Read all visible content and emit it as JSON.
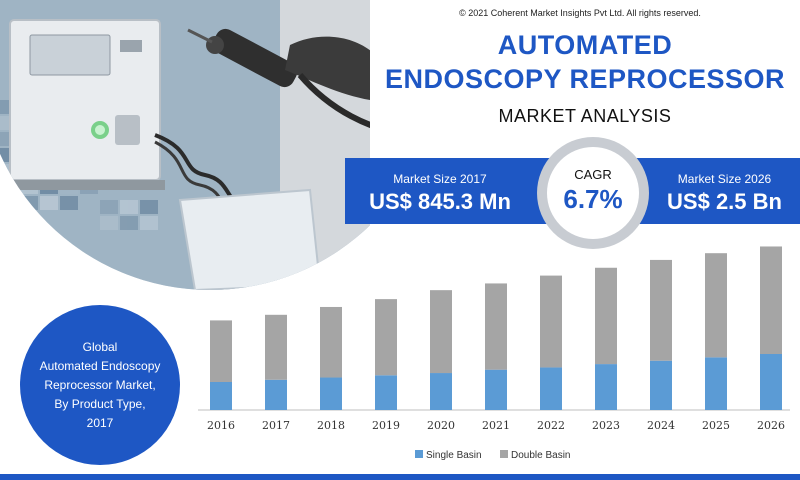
{
  "header": {
    "copyright": "© 2021 Coherent Market Insights Pvt Ltd. All rights reserved.",
    "title_line1": "AUTOMATED",
    "title_line2": "ENDOSCOPY REPROCESSOR",
    "subtitle": "MARKET ANALYSIS"
  },
  "stats": {
    "left_label": "Market Size 2017",
    "left_value": "US$ 845.3 Mn",
    "cagr_label": "CAGR",
    "cagr_value": "6.7%",
    "right_label": "Market Size 2026",
    "right_value": "US$ 2.5 Bn"
  },
  "bubble": {
    "line1": "Global",
    "line2": "Automated Endoscopy",
    "line3": "Reprocessor Market,",
    "line4": "By Product Type,",
    "line5": "2017"
  },
  "colors": {
    "accent": "#1e57c4",
    "single_basin": "#5b9bd5",
    "double_basin": "#a5a5a5"
  },
  "chart_data": {
    "type": "bar",
    "stacked": true,
    "categories": [
      "2016",
      "2017",
      "2018",
      "2019",
      "2020",
      "2021",
      "2022",
      "2023",
      "2024",
      "2025",
      "2026"
    ],
    "series": [
      {
        "name": "Single Basin",
        "values": [
          25,
          27,
          29,
          31,
          33,
          36,
          38,
          41,
          44,
          47,
          50
        ]
      },
      {
        "name": "Double Basin",
        "values": [
          55,
          58,
          63,
          68,
          74,
          77,
          82,
          86,
          90,
          93,
          96
        ]
      }
    ],
    "legend": "bottom-center",
    "grid": false,
    "ylim": [
      0,
      150
    ]
  }
}
